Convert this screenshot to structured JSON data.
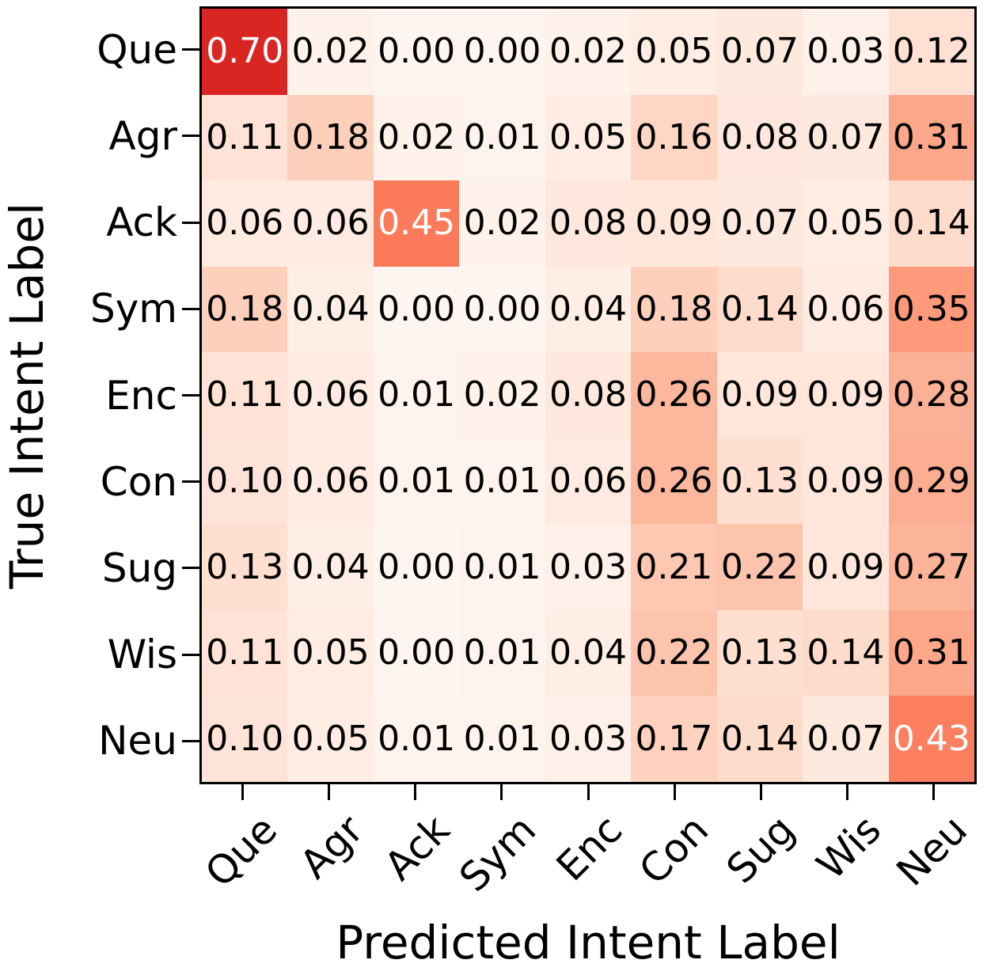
{
  "figure": {
    "x_axis_title": "Predicted Intent Label",
    "y_axis_title": "True Intent Label"
  },
  "chart_data": {
    "type": "heatmap",
    "title": "",
    "xlabel": "Predicted Intent Label",
    "ylabel": "True Intent Label",
    "x_categories": [
      "Que",
      "Agr",
      "Ack",
      "Sym",
      "Enc",
      "Con",
      "Sug",
      "Wis",
      "Neu"
    ],
    "y_categories": [
      "Que",
      "Agr",
      "Ack",
      "Sym",
      "Enc",
      "Con",
      "Sug",
      "Wis",
      "Neu"
    ],
    "matrix": [
      [
        0.7,
        0.02,
        0.0,
        0.0,
        0.02,
        0.05,
        0.07,
        0.03,
        0.12
      ],
      [
        0.11,
        0.18,
        0.02,
        0.01,
        0.05,
        0.16,
        0.08,
        0.07,
        0.31
      ],
      [
        0.06,
        0.06,
        0.45,
        0.02,
        0.08,
        0.09,
        0.07,
        0.05,
        0.14
      ],
      [
        0.18,
        0.04,
        0.0,
        0.0,
        0.04,
        0.18,
        0.14,
        0.06,
        0.35
      ],
      [
        0.11,
        0.06,
        0.01,
        0.02,
        0.08,
        0.26,
        0.09,
        0.09,
        0.28
      ],
      [
        0.1,
        0.06,
        0.01,
        0.01,
        0.06,
        0.26,
        0.13,
        0.09,
        0.29
      ],
      [
        0.13,
        0.04,
        0.0,
        0.01,
        0.03,
        0.21,
        0.22,
        0.09,
        0.27
      ],
      [
        0.11,
        0.05,
        0.0,
        0.01,
        0.04,
        0.22,
        0.13,
        0.14,
        0.31
      ],
      [
        0.1,
        0.05,
        0.01,
        0.01,
        0.03,
        0.17,
        0.14,
        0.07,
        0.43
      ]
    ],
    "value_format_decimals": 2,
    "vmin": 0,
    "vmax": 1,
    "colormap_name": "Reds",
    "colormap_stops": [
      [
        0.0,
        "#fff5f0"
      ],
      [
        0.125,
        "#fee0d2"
      ],
      [
        0.25,
        "#fcbba1"
      ],
      [
        0.375,
        "#fc9272"
      ],
      [
        0.5,
        "#fb6a4a"
      ],
      [
        0.625,
        "#ef3b2c"
      ],
      [
        0.75,
        "#cb181d"
      ],
      [
        0.875,
        "#a50f15"
      ],
      [
        1.0,
        "#67000d"
      ]
    ],
    "white_text_threshold": 0.4,
    "white_text_color": "#ffffff",
    "black_text_color": "#000000",
    "x_tick_rotation_deg": 45,
    "grid": false,
    "legend": "none"
  }
}
